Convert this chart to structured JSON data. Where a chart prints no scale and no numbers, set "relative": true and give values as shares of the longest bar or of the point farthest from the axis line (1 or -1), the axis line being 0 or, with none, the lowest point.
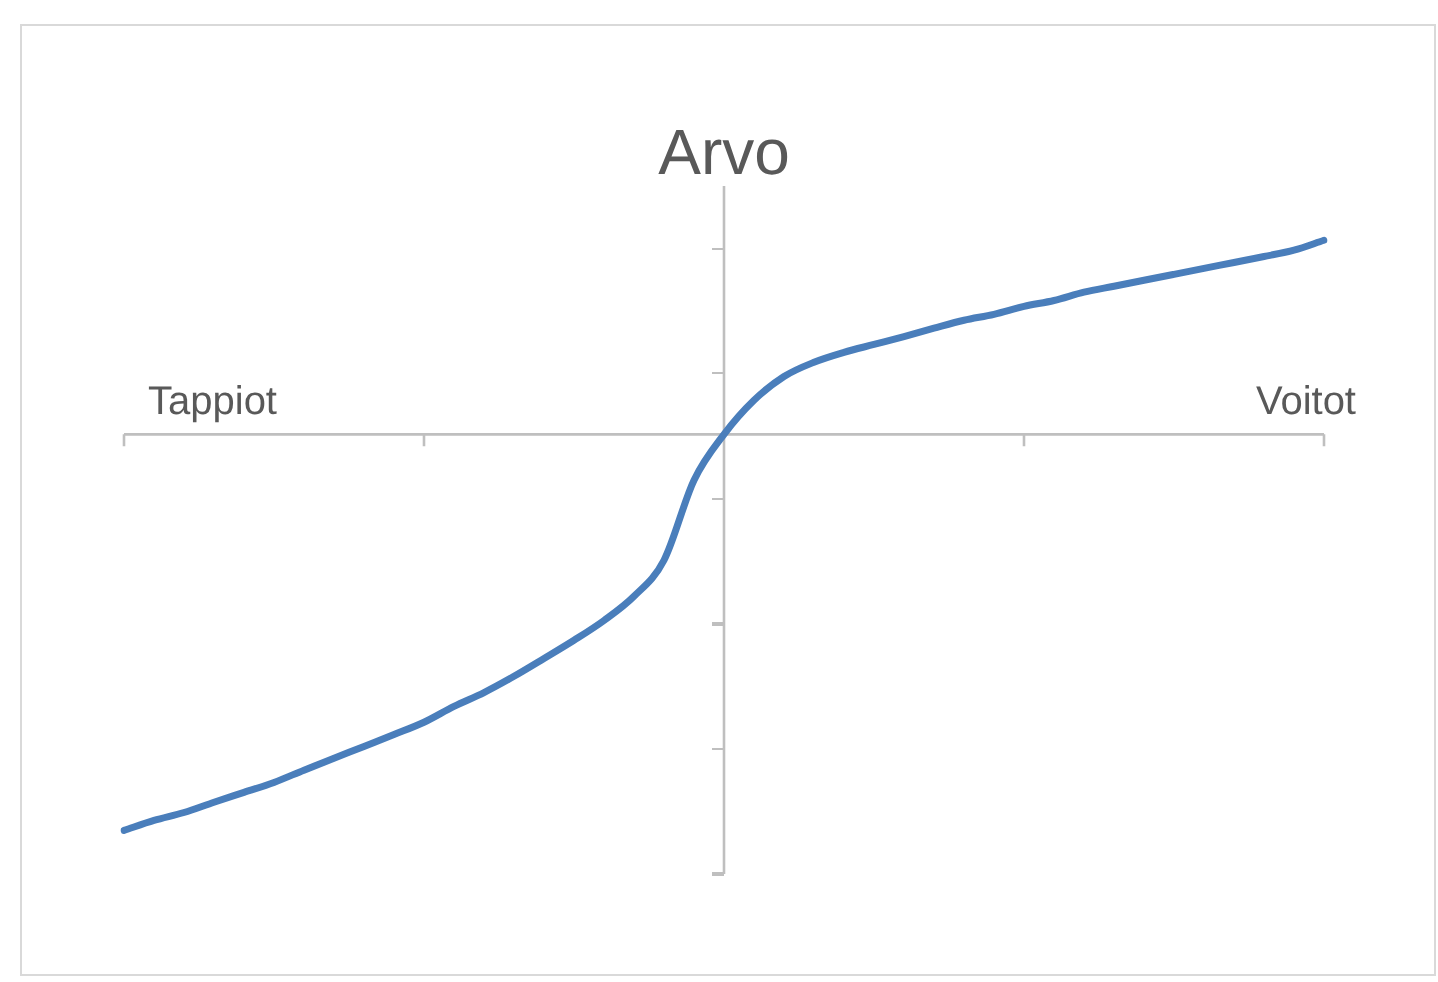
{
  "chart_data": {
    "type": "line",
    "relative": true,
    "ylabel": "Arvo",
    "annotations": [
      "Tappiot",
      "Voitot"
    ],
    "categories": [
      null,
      null,
      null,
      null,
      null,
      null,
      null,
      null,
      null,
      null,
      null,
      null,
      null,
      null,
      null,
      null,
      null,
      null,
      null,
      null,
      null,
      null,
      null,
      null,
      null,
      null,
      null,
      null,
      null,
      null,
      null,
      null,
      null,
      null,
      null,
      null,
      null,
      null,
      null,
      null,
      null
    ],
    "series": [
      {
        "color": "#4a7ebb",
        "values": [
          -1,
          -0.975,
          -0.955,
          -0.929,
          -0.904,
          -0.879,
          -0.848,
          -0.818,
          -0.788,
          -0.758,
          -0.727,
          -0.687,
          -0.652,
          -0.611,
          -0.566,
          -0.52,
          -0.47,
          -0.409,
          -0.318,
          -0.116,
          0,
          0.086,
          0.146,
          0.182,
          0.207,
          0.227,
          0.247,
          0.268,
          0.288,
          0.303,
          0.323,
          0.338,
          0.359,
          0.374,
          0.389,
          0.404,
          0.419,
          0.434,
          0.449,
          0.465,
          0.49
        ]
      }
    ],
    "legend": false,
    "marker": "none",
    "line_style": "solid"
  }
}
